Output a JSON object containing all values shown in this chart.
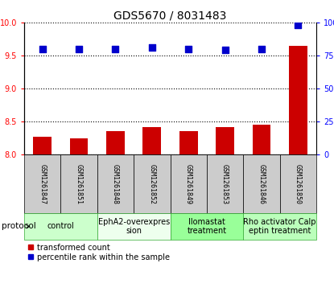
{
  "title": "GDS5670 / 8031483",
  "samples": [
    "GSM1261847",
    "GSM1261851",
    "GSM1261848",
    "GSM1261852",
    "GSM1261849",
    "GSM1261853",
    "GSM1261846",
    "GSM1261850"
  ],
  "transformed_count": [
    8.27,
    8.24,
    8.35,
    8.42,
    8.35,
    8.42,
    8.45,
    9.65
  ],
  "percentile_rank": [
    80,
    80,
    80,
    81,
    80,
    79,
    80,
    98
  ],
  "ylim_left": [
    8.0,
    10.0
  ],
  "ylim_right": [
    0,
    100
  ],
  "yticks_left": [
    8.0,
    8.5,
    9.0,
    9.5,
    10.0
  ],
  "yticks_right": [
    0,
    25,
    50,
    75,
    100
  ],
  "protocols": [
    {
      "label": "control",
      "indices": [
        0,
        1
      ],
      "color": "#ccffcc"
    },
    {
      "label": "EphA2-overexpres\nsion",
      "indices": [
        2,
        3
      ],
      "color": "#eeffee"
    },
    {
      "label": "Ilomastat\ntreatment",
      "indices": [
        4,
        5
      ],
      "color": "#99ff99"
    },
    {
      "label": "Rho activator Calp\neptin treatment",
      "indices": [
        6,
        7
      ],
      "color": "#bbffbb"
    }
  ],
  "bar_color": "#cc0000",
  "dot_color": "#0000cc",
  "bar_width": 0.5,
  "dot_size": 40,
  "bg_color_sample": "#cccccc",
  "legend_items": [
    {
      "label": "transformed count",
      "color": "#cc0000"
    },
    {
      "label": "percentile rank within the sample",
      "color": "#0000cc"
    }
  ],
  "title_fontsize": 10,
  "tick_fontsize": 7,
  "sample_fontsize": 6,
  "proto_fontsize": 7
}
